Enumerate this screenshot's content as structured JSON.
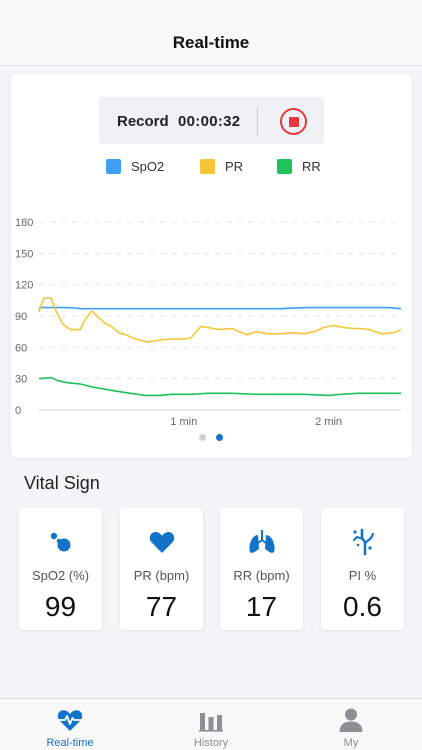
{
  "header": {
    "title": "Real-time"
  },
  "record": {
    "label": "Record",
    "time": "00:00:32"
  },
  "legend": [
    {
      "name": "SpO2",
      "color": "#3ea0f4"
    },
    {
      "name": "PR",
      "color": "#f6c538"
    },
    {
      "name": "RR",
      "color": "#1ec25a"
    }
  ],
  "chart_data": {
    "type": "line",
    "ylim": [
      0,
      180
    ],
    "yticks": [
      "0",
      "30",
      "60",
      "90",
      "120",
      "150",
      "180"
    ],
    "xticks": [
      {
        "label": "1 min",
        "t": 60
      },
      {
        "label": "2 min",
        "t": 120
      }
    ],
    "xlim": [
      0,
      150
    ],
    "grid": true,
    "series": [
      {
        "name": "SpO2",
        "color": "#3ea0f4",
        "points": [
          [
            0,
            98
          ],
          [
            12,
            98
          ],
          [
            18,
            97
          ],
          [
            40,
            97
          ],
          [
            60,
            97
          ],
          [
            75,
            97
          ],
          [
            90,
            97
          ],
          [
            100,
            97
          ],
          [
            110,
            98
          ],
          [
            130,
            98
          ],
          [
            145,
            98
          ],
          [
            150,
            97
          ]
        ]
      },
      {
        "name": "PR",
        "color": "#f6c538",
        "points": [
          [
            0,
            94
          ],
          [
            2,
            107
          ],
          [
            5,
            107
          ],
          [
            7,
            95
          ],
          [
            10,
            82
          ],
          [
            13,
            77
          ],
          [
            17,
            77
          ],
          [
            19,
            86
          ],
          [
            22,
            95
          ],
          [
            24,
            90
          ],
          [
            26,
            86
          ],
          [
            28,
            82
          ],
          [
            30,
            80
          ],
          [
            33,
            74
          ],
          [
            36,
            72
          ],
          [
            40,
            68
          ],
          [
            45,
            65
          ],
          [
            50,
            67
          ],
          [
            55,
            68
          ],
          [
            60,
            68
          ],
          [
            63,
            69
          ],
          [
            67,
            80
          ],
          [
            70,
            79
          ],
          [
            75,
            77
          ],
          [
            80,
            78
          ],
          [
            86,
            72
          ],
          [
            90,
            75
          ],
          [
            95,
            73
          ],
          [
            100,
            73
          ],
          [
            105,
            74
          ],
          [
            110,
            73
          ],
          [
            114,
            75
          ],
          [
            118,
            79
          ],
          [
            122,
            81
          ],
          [
            126,
            79
          ],
          [
            130,
            78
          ],
          [
            133,
            78
          ],
          [
            137,
            77
          ],
          [
            142,
            73
          ],
          [
            147,
            74
          ],
          [
            150,
            77
          ]
        ]
      },
      {
        "name": "RR",
        "color": "#1ec25a",
        "points": [
          [
            0,
            30
          ],
          [
            5,
            31
          ],
          [
            8,
            28
          ],
          [
            12,
            26
          ],
          [
            17,
            25
          ],
          [
            22,
            22
          ],
          [
            27,
            20
          ],
          [
            32,
            18
          ],
          [
            38,
            16
          ],
          [
            44,
            14
          ],
          [
            50,
            14
          ],
          [
            55,
            15
          ],
          [
            63,
            15
          ],
          [
            70,
            16
          ],
          [
            80,
            16
          ],
          [
            90,
            15
          ],
          [
            100,
            15
          ],
          [
            110,
            15
          ],
          [
            120,
            14
          ],
          [
            125,
            15
          ],
          [
            132,
            16
          ],
          [
            140,
            16
          ],
          [
            150,
            16
          ]
        ]
      }
    ]
  },
  "pager": {
    "pages": 2,
    "active": 1
  },
  "vitals": {
    "title": "Vital Sign",
    "cards": [
      {
        "label": "SpO2 (%)",
        "value": "99",
        "icon": "oxygen-bubbles-icon"
      },
      {
        "label": "PR (bpm)",
        "value": "77",
        "icon": "heart-icon"
      },
      {
        "label": "RR (bpm)",
        "value": "17",
        "icon": "lungs-icon"
      },
      {
        "label": "PI %",
        "value": "0.6",
        "icon": "perfusion-icon"
      }
    ]
  },
  "tabs": [
    {
      "label": "Real-time",
      "icon": "heart-pulse-icon",
      "active": true
    },
    {
      "label": "History",
      "icon": "bar-chart-icon",
      "active": false
    },
    {
      "label": "My",
      "icon": "person-icon",
      "active": false
    }
  ],
  "colors": {
    "accent": "#1273c8",
    "inactive": "#8e8e93",
    "stop": "#e8383d"
  }
}
